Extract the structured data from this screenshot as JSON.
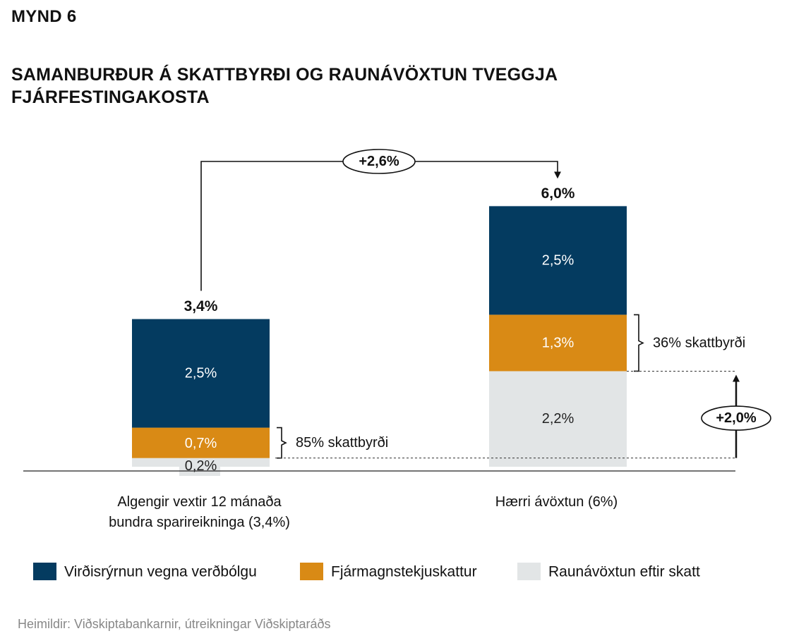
{
  "figure_label": "MYND 6",
  "title": "SAMANBURÐUR Á SKATTBYRÐI OG RAUNÁVÖXTUN TVEGGJA FJÁRFESTINGAKOSTA",
  "source": "Heimildir: Viðskiptabankarnir, útreikningar Viðskiptaráðs",
  "colors": {
    "inflation": "#043b60",
    "tax": "#d98a15",
    "real_return": "#e2e5e6"
  },
  "chart_data": {
    "type": "bar",
    "stacked": true,
    "categories": [
      "Algengir vextir 12 mánaða bundra sparireikninga (3,4%)",
      "Hærri ávöxtun (6%)"
    ],
    "category_label_lines": [
      [
        "Algengir vextir 12 mánaða",
        "bundra sparireikninga (3,4%)"
      ],
      [
        "Hærri ávöxtun (6%)"
      ]
    ],
    "series": [
      {
        "name": "Raunávöxtun eftir skatt",
        "values": [
          0.2,
          2.2
        ],
        "labels": [
          "0,2%",
          "2,2%"
        ]
      },
      {
        "name": "Fjármagnstekjuskattur",
        "values": [
          0.7,
          1.3
        ],
        "labels": [
          "0,7%",
          "1,3%"
        ]
      },
      {
        "name": "Virðisrýrnun vegna verðbólgu",
        "values": [
          2.5,
          2.5
        ],
        "labels": [
          "2,5%",
          "2,5%"
        ]
      }
    ],
    "totals": [
      "3,4%",
      "6,0%"
    ],
    "tax_burden_labels": [
      "85% skattbyrði",
      "36% skattbyrði"
    ],
    "annotations": {
      "total_difference": "+2,6%",
      "real_return_difference": "+2,0%"
    },
    "legend": [
      "Virðisrýrnun vegna verðbólgu",
      "Fjármagnstekjuskattur",
      "Raunávöxtun eftir skatt"
    ],
    "legend_position": "bottom",
    "grid": false
  }
}
